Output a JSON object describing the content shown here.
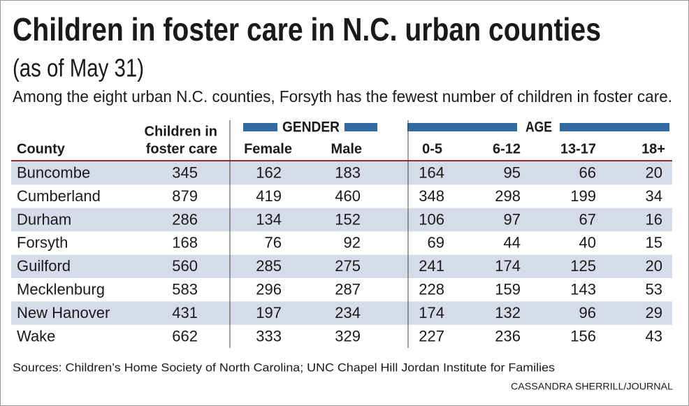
{
  "header": {
    "title": "Children in foster care in N.C. urban counties",
    "subtitle": "(as of May 31)",
    "description": "Among the eight urban N.C. counties, Forsyth has the fewest number of children in foster care."
  },
  "table": {
    "group_headers": [
      "GENDER",
      "AGE"
    ],
    "columns": [
      "County",
      [
        "Children in",
        "foster care"
      ],
      "Female",
      "Male",
      "0-5",
      "6-12",
      "13-17",
      "18+"
    ],
    "rows": [
      [
        "Buncombe",
        345,
        162,
        183,
        164,
        95,
        66,
        20
      ],
      [
        "Cumberland",
        879,
        419,
        460,
        348,
        298,
        199,
        34
      ],
      [
        "Durham",
        286,
        134,
        152,
        106,
        97,
        67,
        16
      ],
      [
        "Forsyth",
        168,
        76,
        92,
        69,
        44,
        40,
        15
      ],
      [
        "Guilford",
        560,
        285,
        275,
        241,
        174,
        125,
        20
      ],
      [
        "Mecklenburg",
        583,
        296,
        287,
        228,
        159,
        143,
        53
      ],
      [
        "New Hanover",
        431,
        197,
        234,
        174,
        132,
        96,
        29
      ],
      [
        "Wake",
        662,
        333,
        329,
        227,
        236,
        156,
        43
      ]
    ]
  },
  "footer": {
    "sources": "Sources: Children’s Home Society of North Carolina; UNC Chapel Hill Jordan Institute for Families",
    "credit": "CASSANDRA SHERRILL/JOURNAL"
  }
}
